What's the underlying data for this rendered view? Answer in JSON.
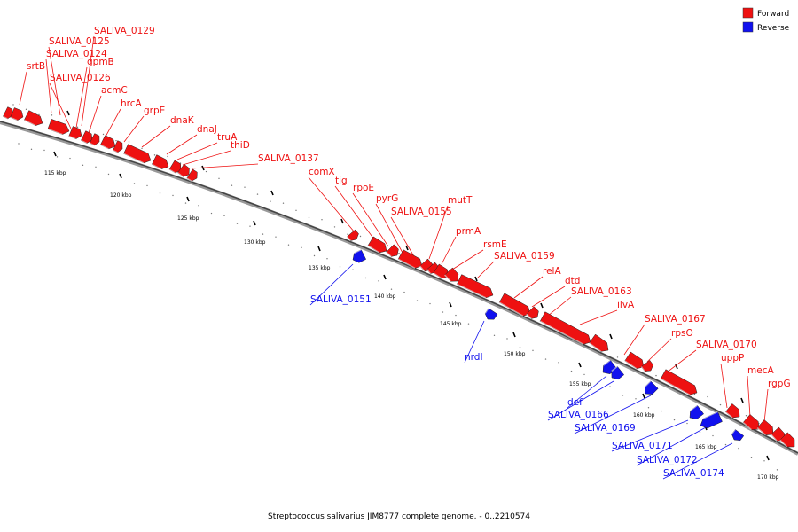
{
  "caption": "Streptococcus salivarius JIM8777 complete genome. - 0..2210574",
  "legend": [
    {
      "label": "Forward",
      "color": "#ee1111"
    },
    {
      "label": "Reverse",
      "color": "#1111ee"
    }
  ],
  "scale_ticks": [
    "115 kbp",
    "120 kbp",
    "125 kbp",
    "130 kbp",
    "135 kbp",
    "140 kbp",
    "145 kbp",
    "150 kbp",
    "155 kbp",
    "160 kbp",
    "165 kbp",
    "170 kbp"
  ],
  "forward_labels": [
    "SALIVA_0129",
    "SALIVA_0125",
    "SALIVA_0124",
    "srtB",
    "gpmB",
    "SALIVA_0126",
    "acmC",
    "hrcA",
    "grpE",
    "dnaK",
    "dnaJ",
    "truA",
    "thiD",
    "SALIVA_0137",
    "comX",
    "tig",
    "rpoE",
    "pyrG",
    "SALIVA_0155",
    "mutT",
    "prmA",
    "rsmE",
    "SALIVA_0159",
    "relA",
    "dtd",
    "SALIVA_0163",
    "ilvA",
    "SALIVA_0167",
    "rpsO",
    "SALIVA_0170",
    "uppP",
    "mecA",
    "rgpG"
  ],
  "reverse_labels": [
    "SALIVA_0151",
    "nrdI",
    "def",
    "SALIVA_0166",
    "SALIVA_0169",
    "SALIVA_0171",
    "SALIVA_0172",
    "SALIVA_0174"
  ]
}
